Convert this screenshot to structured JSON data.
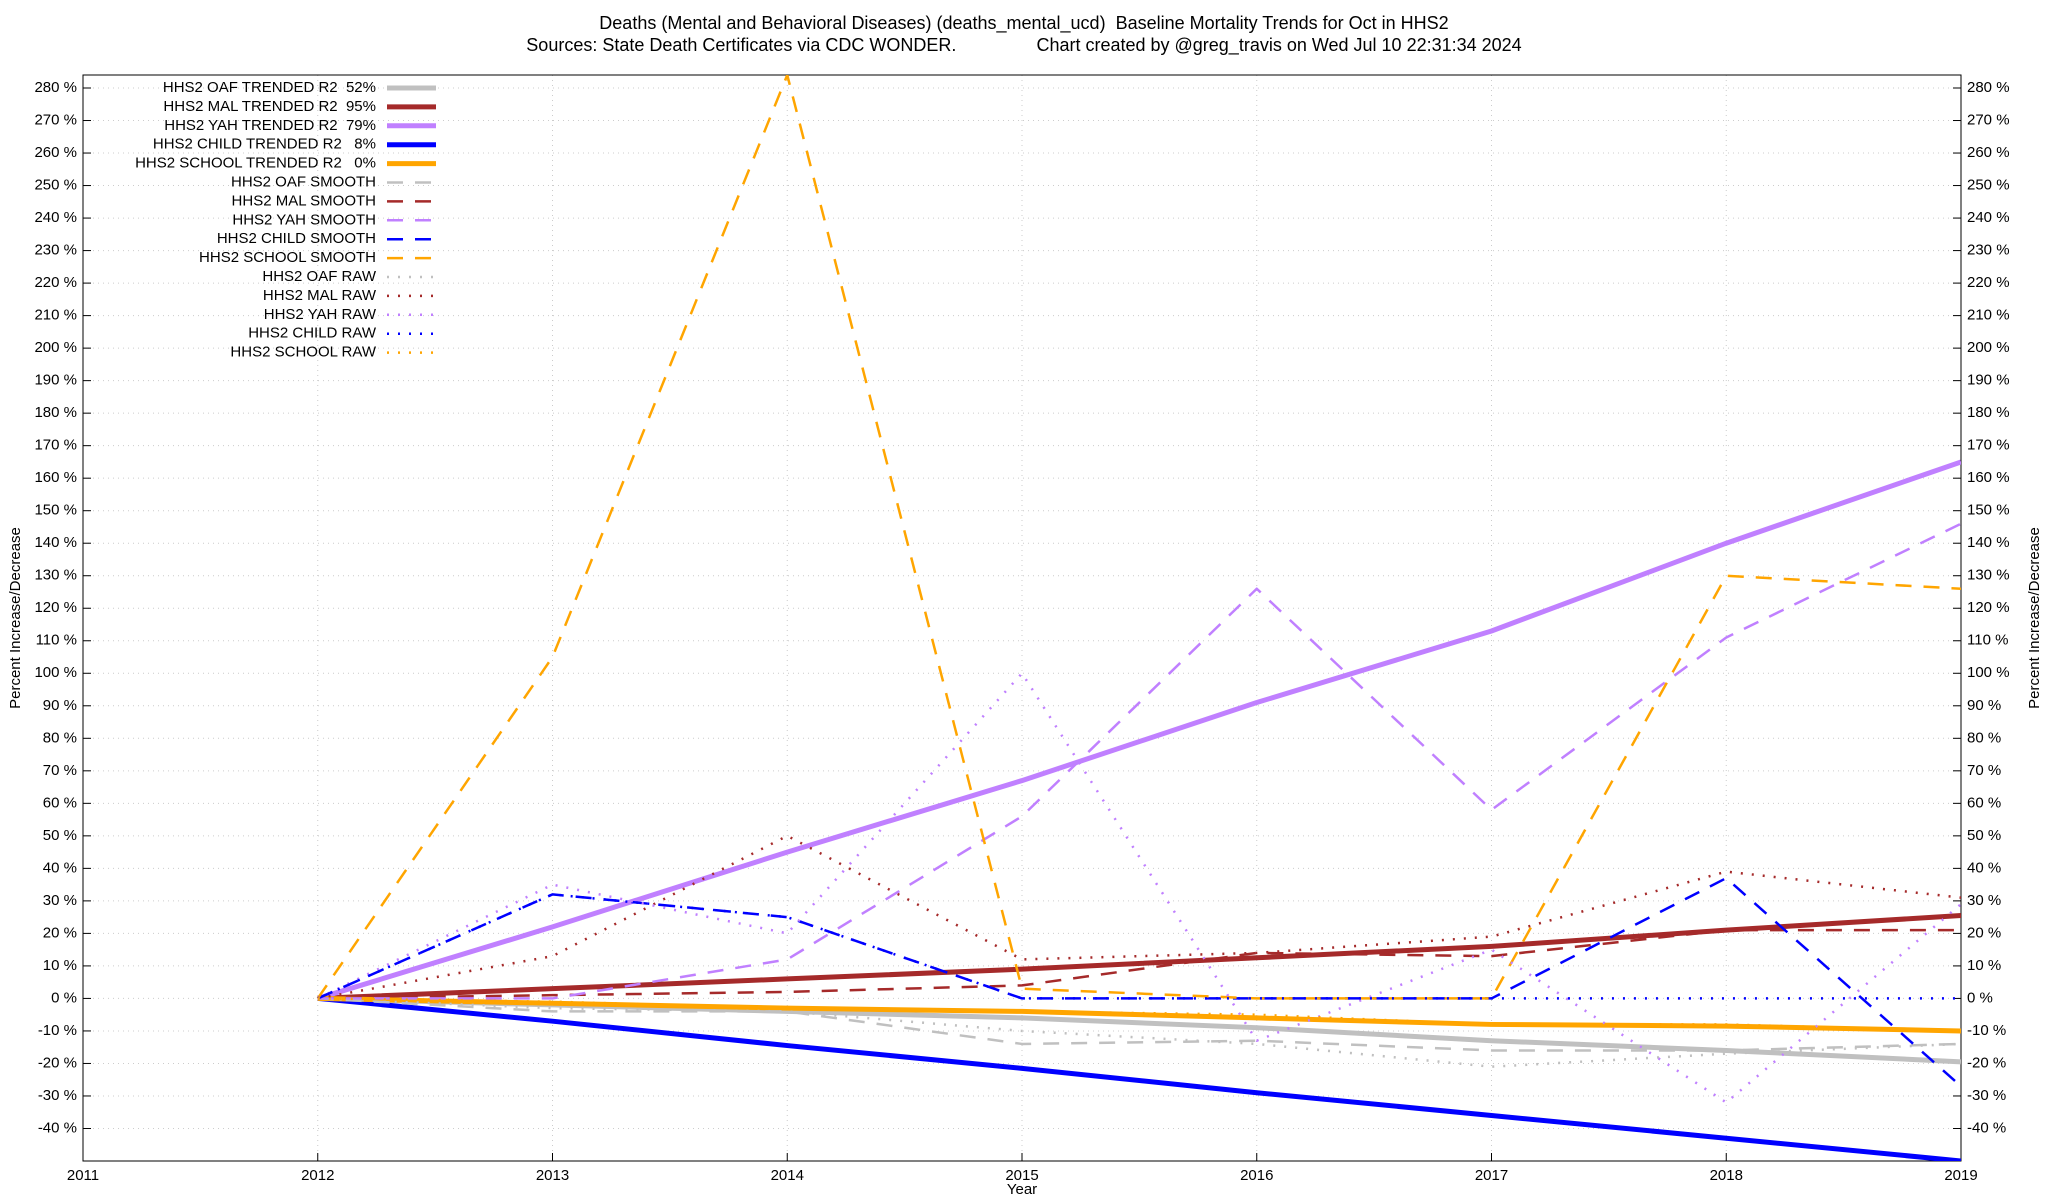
{
  "chart_data": {
    "type": "line",
    "title": "Deaths (Mental and Behavioral Diseases) (deaths_mental_ucd)  Baseline Mortality Trends for Oct in HHS2",
    "subtitle": "Sources: State Death Certificates via CDC WONDER.                Chart created by @greg_travis on Wed Jul 10 22:31:34 2024",
    "xlabel": "Year",
    "ylabel": "Percent Increase/Decrease",
    "y2label": "Percent Increase/Decrease",
    "grid": true,
    "legend": "upper left",
    "xlim": [
      2011,
      2019
    ],
    "xticks": [
      2011,
      2012,
      2013,
      2014,
      2015,
      2016,
      2017,
      2018,
      2019
    ],
    "ylim": [
      -50,
      284
    ],
    "yticks": [
      {
        "value": -40,
        "label": "-40 %"
      },
      {
        "value": -30,
        "label": "-30 %"
      },
      {
        "value": -20,
        "label": "-20 %"
      },
      {
        "value": -10,
        "label": "-10 %"
      },
      {
        "value": 0,
        "label": "0 %"
      },
      {
        "value": 10,
        "label": "10 %"
      },
      {
        "value": 20,
        "label": "20 %"
      },
      {
        "value": 30,
        "label": "30 %"
      },
      {
        "value": 40,
        "label": "40 %"
      },
      {
        "value": 50,
        "label": "50 %"
      },
      {
        "value": 60,
        "label": "60 %"
      },
      {
        "value": 70,
        "label": "70 %"
      },
      {
        "value": 80,
        "label": "80 %"
      },
      {
        "value": 90,
        "label": "90 %"
      },
      {
        "value": 100,
        "label": "100 %"
      },
      {
        "value": 110,
        "label": "110 %"
      },
      {
        "value": 120,
        "label": "120 %"
      },
      {
        "value": 130,
        "label": "130 %"
      },
      {
        "value": 140,
        "label": "140 %"
      },
      {
        "value": 150,
        "label": "150 %"
      },
      {
        "value": 160,
        "label": "160 %"
      },
      {
        "value": 170,
        "label": "170 %"
      },
      {
        "value": 180,
        "label": "180 %"
      },
      {
        "value": 190,
        "label": "190 %"
      },
      {
        "value": 200,
        "label": "200 %"
      },
      {
        "value": 210,
        "label": "210 %"
      },
      {
        "value": 220,
        "label": "220 %"
      },
      {
        "value": 230,
        "label": "230 %"
      },
      {
        "value": 240,
        "label": "240 %"
      },
      {
        "value": 250,
        "label": "250 %"
      },
      {
        "value": 260,
        "label": "260 %"
      },
      {
        "value": 270,
        "label": "270 %"
      },
      {
        "value": 280,
        "label": "280 %"
      }
    ],
    "x": [
      2012,
      2013,
      2014,
      2015,
      2016,
      2017,
      2018,
      2019
    ],
    "series": [
      {
        "name": "HHS2 OAF TRENDED R2  52%",
        "color": "#c0c0c0",
        "style": "solid",
        "values": [
          0,
          -2,
          -4,
          -6,
          -9,
          -13,
          -16,
          -19.5
        ]
      },
      {
        "name": "HHS2 MAL TRENDED R2  95%",
        "color": "#a52a2a",
        "style": "solid",
        "values": [
          0,
          3,
          6,
          9,
          12.5,
          16,
          21,
          25.5
        ]
      },
      {
        "name": "HHS2 YAH TRENDED R2  79%",
        "color": "#c080ff",
        "style": "solid",
        "values": [
          0,
          22,
          45,
          67,
          91,
          113,
          140,
          165
        ]
      },
      {
        "name": "HHS2 CHILD TRENDED R2   8%",
        "color": "#0000ff",
        "style": "solid",
        "values": [
          0,
          -7,
          -14.5,
          -21.5,
          -29,
          -36,
          -43,
          -50
        ]
      },
      {
        "name": "HHS2 SCHOOL TRENDED R2   0%",
        "color": "#ffa500",
        "style": "solid",
        "values": [
          0,
          -1.5,
          -3,
          -4,
          -6,
          -8,
          -8.5,
          -10
        ]
      },
      {
        "name": "HHS2 OAF SMOOTH",
        "color": "#c0c0c0",
        "style": "dashed",
        "values": [
          0,
          -4,
          -4,
          -14,
          -13,
          -16,
          -16,
          -14
        ]
      },
      {
        "name": "HHS2 MAL SMOOTH",
        "color": "#a52a2a",
        "style": "dashed",
        "values": [
          0,
          1,
          2,
          4,
          14,
          13,
          21,
          21
        ]
      },
      {
        "name": "HHS2 YAH SMOOTH",
        "color": "#c080ff",
        "style": "dashed",
        "values": [
          0,
          0,
          12,
          56,
          126,
          58,
          111,
          146
        ]
      },
      {
        "name": "HHS2 CHILD SMOOTH",
        "color": "#0000ff",
        "style": "dashed",
        "values": [
          0,
          32,
          25,
          0,
          0,
          0,
          37,
          -27
        ]
      },
      {
        "name": "HHS2 SCHOOL SMOOTH",
        "color": "#ffa500",
        "style": "dashed",
        "values": [
          0,
          105,
          284,
          3,
          0,
          0,
          130,
          126
        ]
      },
      {
        "name": "HHS2 OAF RAW",
        "color": "#c0c0c0",
        "style": "dotted",
        "values": [
          0,
          -3,
          -4,
          -10,
          -14,
          -21,
          -17,
          -14
        ]
      },
      {
        "name": "HHS2 MAL RAW",
        "color": "#a52a2a",
        "style": "dotted",
        "values": [
          0,
          13,
          50,
          12,
          14,
          19,
          39,
          31
        ]
      },
      {
        "name": "HHS2 YAH RAW",
        "color": "#c080ff",
        "style": "dotted",
        "values": [
          0,
          35,
          20,
          100,
          -13,
          15,
          -32,
          29
        ]
      },
      {
        "name": "HHS2 CHILD RAW",
        "color": "#0000ff",
        "style": "dotted",
        "values": [
          0,
          32,
          25,
          0,
          0,
          0,
          0,
          0
        ]
      },
      {
        "name": "HHS2 SCHOOL RAW",
        "color": "#ffa500",
        "style": "dotted",
        "values": [
          0,
          -1,
          -3,
          -4,
          -5,
          -8,
          -8,
          -10
        ]
      }
    ]
  }
}
